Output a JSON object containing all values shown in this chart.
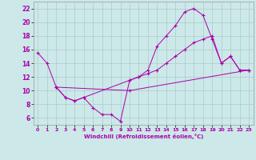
{
  "xlabel": "Windchill (Refroidissement éolien,°C)",
  "bg_color": "#cce8e8",
  "grid_color": "#aacccc",
  "line_color": "#aa00aa",
  "xlim": [
    -0.5,
    23.5
  ],
  "ylim": [
    5.0,
    23.0
  ],
  "xticks": [
    0,
    1,
    2,
    3,
    4,
    5,
    6,
    7,
    8,
    9,
    10,
    11,
    12,
    13,
    14,
    15,
    16,
    17,
    18,
    19,
    20,
    21,
    22,
    23
  ],
  "yticks": [
    6,
    8,
    10,
    12,
    14,
    16,
    18,
    20,
    22
  ],
  "line1_x": [
    0,
    1,
    2,
    3,
    4,
    5,
    6,
    7,
    8,
    9,
    10,
    11,
    12,
    13,
    14,
    15,
    16,
    17,
    18,
    19,
    20,
    21,
    22,
    23
  ],
  "line1_y": [
    15.5,
    14.0,
    10.5,
    9.0,
    8.5,
    9.0,
    7.5,
    6.5,
    6.5,
    5.5,
    11.5,
    12.0,
    13.0,
    16.5,
    18.0,
    19.5,
    21.5,
    22.0,
    21.0,
    17.5,
    14.0,
    15.0,
    13.0,
    13.0
  ],
  "line2_x": [
    2,
    3,
    4,
    5,
    10,
    11,
    12,
    13,
    14,
    15,
    16,
    17,
    18,
    19,
    20,
    21,
    22,
    23
  ],
  "line2_y": [
    10.5,
    9.0,
    8.5,
    9.0,
    11.5,
    12.0,
    12.5,
    13.0,
    14.0,
    15.0,
    16.0,
    17.0,
    17.5,
    18.0,
    14.0,
    15.0,
    13.0,
    13.0
  ],
  "line3_x": [
    2,
    10,
    23
  ],
  "line3_y": [
    10.5,
    10.0,
    13.0
  ]
}
